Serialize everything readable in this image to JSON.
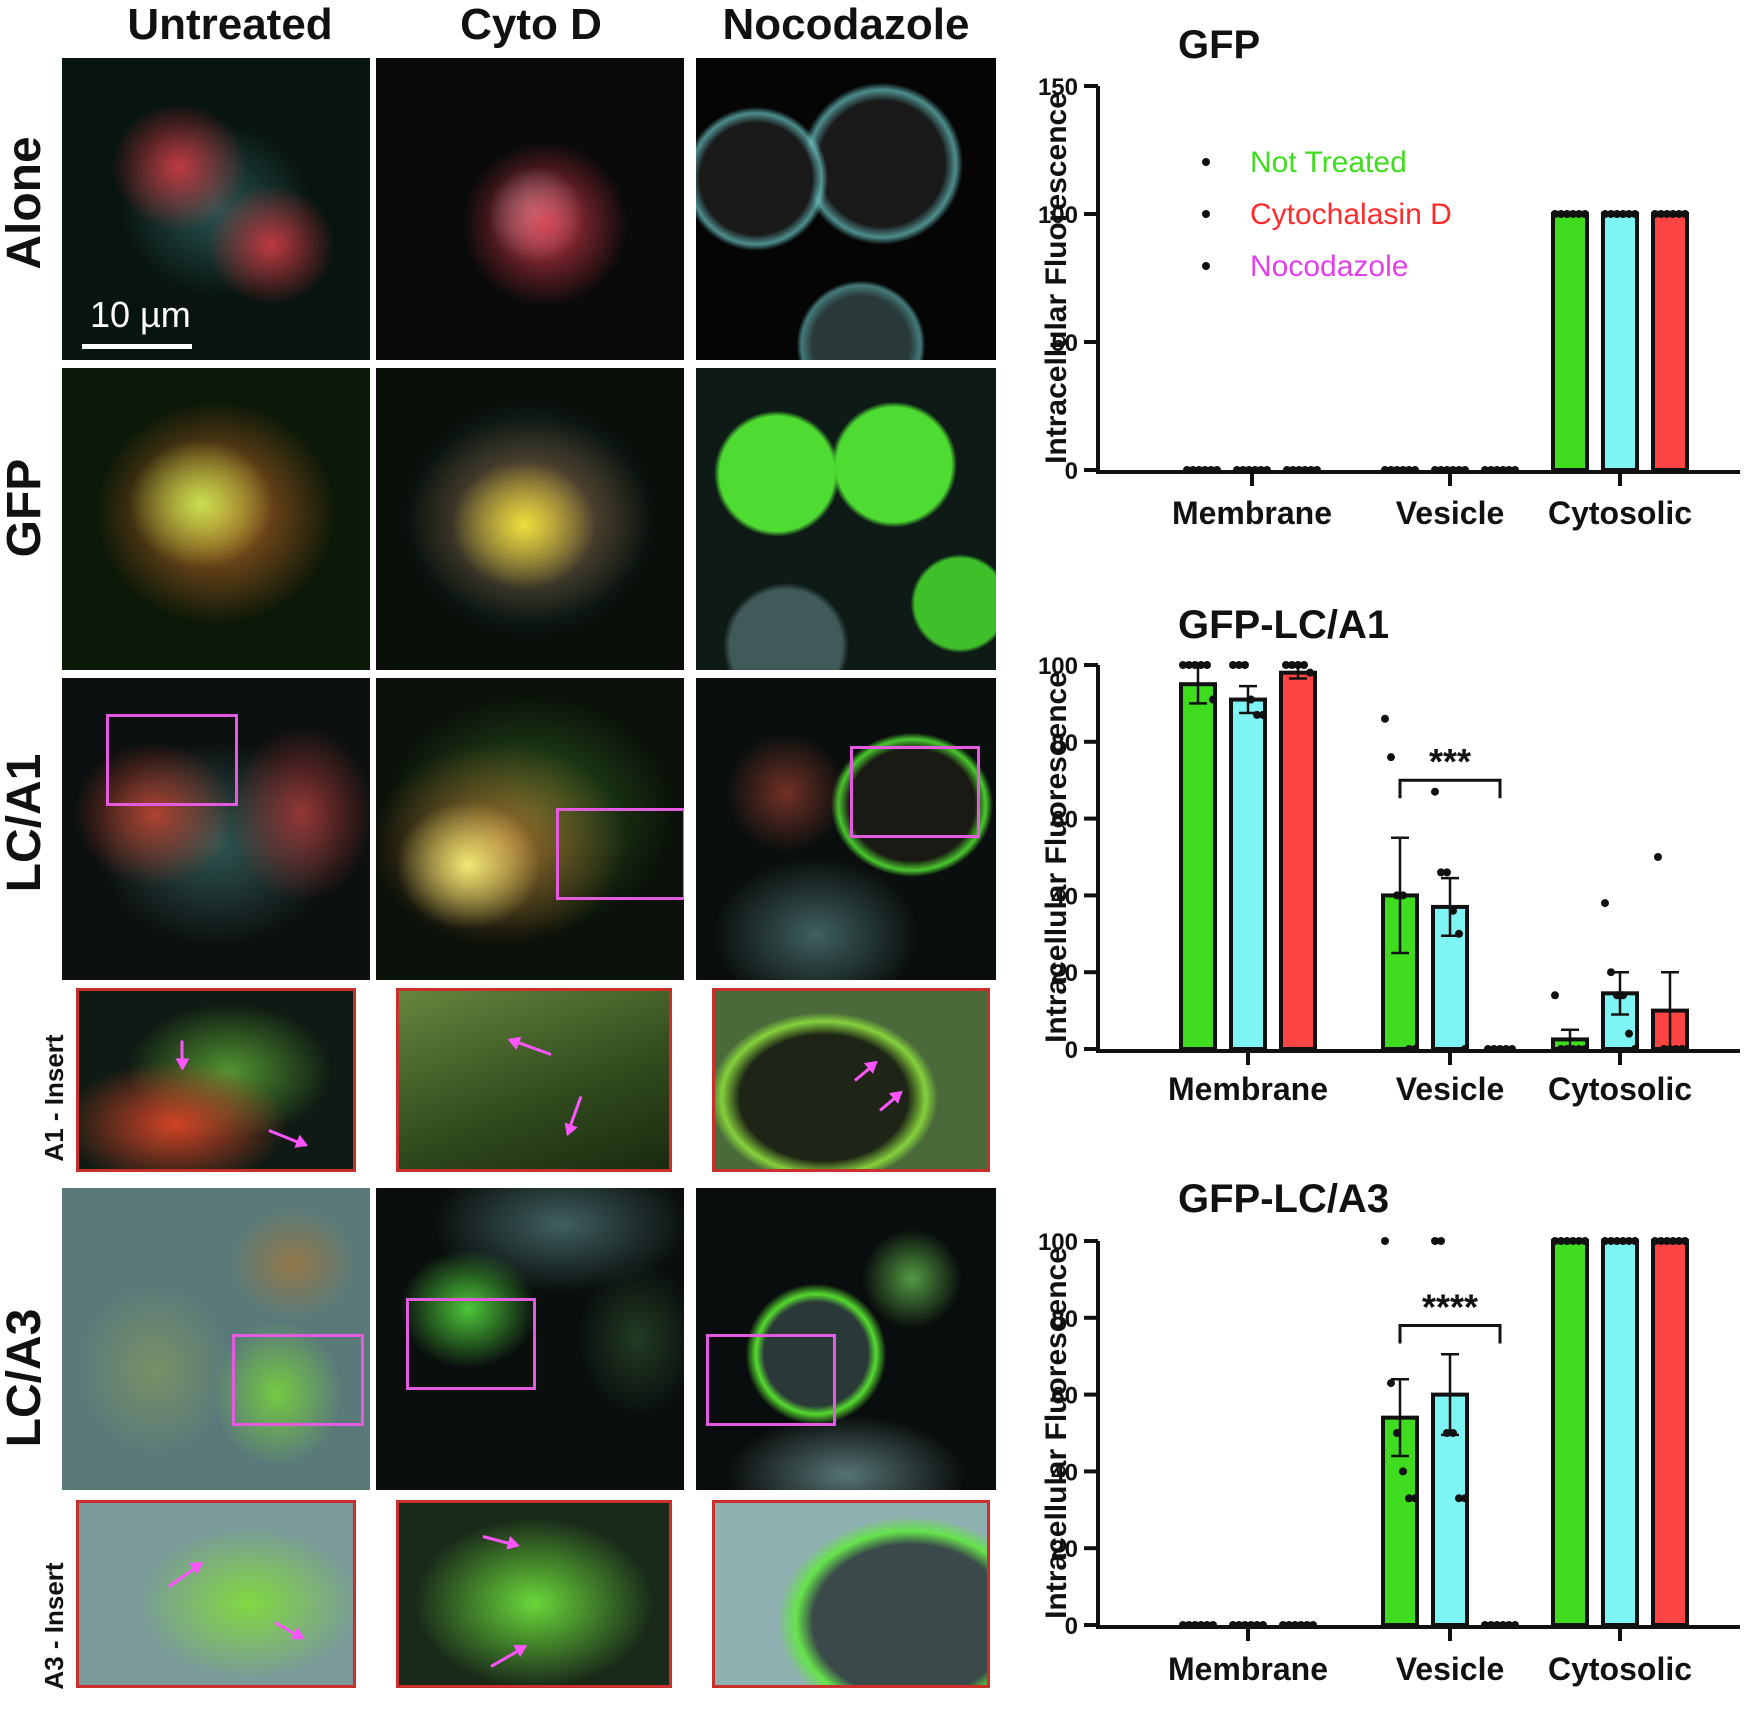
{
  "micrograph_grid": {
    "columns": [
      "Untreated",
      "Cyto D",
      "Nocodazole"
    ],
    "rows": [
      "Alone",
      "GFP",
      "LC/A1",
      "LC/A3"
    ],
    "inserts": [
      "A1 - Insert",
      "A3 - Insert"
    ],
    "scale_bar": "10 µm"
  },
  "colors": {
    "not_treated": "#3fdc1f",
    "cytochalasin": "#7ff4f4",
    "nocodazole": "#ff4444",
    "legend_not_treated": "#3fdc1f",
    "legend_cytochalasin": "#ff2a2a",
    "legend_nocodazole": "#e040e8",
    "zoom_box": "#e45be0",
    "insert_border": "#c9302c"
  },
  "chart_data": [
    {
      "type": "bar",
      "title": "GFP",
      "ylabel": "Intracellular Fluorescence",
      "categories": [
        "Membrane",
        "Vesicle",
        "Cytosolic"
      ],
      "ylim": [
        0,
        150
      ],
      "yticks": [
        0,
        50,
        100,
        150
      ],
      "legend": {
        "placement": "top-left",
        "entries": [
          "Not Treated",
          "Cytochalasin D",
          "Nocodazole"
        ]
      },
      "series": [
        {
          "values": [
            0,
            0,
            100
          ],
          "error": [
            0,
            0,
            0
          ],
          "points": [
            [
              0,
              0,
              0,
              0,
              0,
              0
            ],
            [
              0,
              0,
              0,
              0,
              0,
              0
            ],
            [
              100,
              100,
              100,
              100,
              100,
              100
            ]
          ]
        },
        {
          "values": [
            0,
            0,
            100
          ],
          "error": [
            0,
            0,
            0
          ],
          "points": [
            [
              0,
              0,
              0,
              0,
              0,
              0
            ],
            [
              0,
              0,
              0,
              0,
              0,
              0
            ],
            [
              100,
              100,
              100,
              100,
              100,
              100
            ]
          ]
        },
        {
          "values": [
            0,
            0,
            100
          ],
          "error": [
            0,
            0,
            0
          ],
          "points": [
            [
              0,
              0,
              0,
              0,
              0,
              0
            ],
            [
              0,
              0,
              0,
              0,
              0,
              0
            ],
            [
              100,
              100,
              100,
              100,
              100,
              100
            ]
          ]
        }
      ],
      "significance": []
    },
    {
      "type": "bar",
      "title": "GFP-LC/A1",
      "ylabel": "Intracellular Fluorescence",
      "categories": [
        "Membrane",
        "Vesicle",
        "Cytosolic"
      ],
      "ylim": [
        0,
        100
      ],
      "yticks": [
        0,
        20,
        40,
        60,
        80,
        100
      ],
      "series": [
        {
          "values": [
            95,
            40,
            2.5
          ],
          "error": [
            5,
            15,
            2.5
          ],
          "points": [
            [
              100,
              100,
              100,
              100,
              100,
              91
            ],
            [
              86,
              76,
              40,
              40,
              0,
              0
            ],
            [
              14,
              0,
              0,
              0,
              0,
              0
            ]
          ]
        },
        {
          "values": [
            91,
            37,
            14.5
          ],
          "error": [
            3.5,
            7.5,
            5.5
          ],
          "points": [
            [
              100,
              100,
              100,
              91,
              87,
              87
            ],
            [
              67,
              46,
              46,
              36,
              30,
              0
            ],
            [
              38,
              20,
              14,
              14,
              4,
              0
            ]
          ]
        },
        {
          "values": [
            98,
            0,
            10
          ],
          "error": [
            1.5,
            0,
            10
          ],
          "points": [
            [
              100,
              100,
              100,
              100,
              98
            ],
            [
              0,
              0,
              0,
              0,
              0
            ],
            [
              50,
              0,
              0,
              0,
              0
            ]
          ]
        }
      ],
      "significance": [
        {
          "category": "Vesicle",
          "from_series": 0,
          "to_series": 2,
          "label": "***",
          "y": 70
        }
      ]
    },
    {
      "type": "bar",
      "title": "GFP-LC/A3",
      "ylabel": "Intracellular Fluorescence",
      "categories": [
        "Membrane",
        "Vesicle",
        "Cytosolic"
      ],
      "ylim": [
        0,
        100
      ],
      "yticks": [
        0,
        20,
        40,
        60,
        80,
        100
      ],
      "series": [
        {
          "values": [
            0,
            54,
            100
          ],
          "error": [
            0,
            10,
            0
          ],
          "points": [
            [
              0,
              0,
              0,
              0,
              0,
              0
            ],
            [
              100,
              63,
              50,
              40,
              33,
              33
            ],
            [
              100,
              100,
              100,
              100,
              100,
              100
            ]
          ]
        },
        {
          "values": [
            0,
            60,
            100
          ],
          "error": [
            0,
            10.5,
            0
          ],
          "points": [
            [
              0,
              0,
              0,
              0,
              0,
              0
            ],
            [
              100,
              100,
              50,
              50,
              33,
              33
            ],
            [
              100,
              100,
              100,
              100,
              100,
              100
            ]
          ]
        },
        {
          "values": [
            0,
            0,
            100
          ],
          "error": [
            0,
            0,
            0
          ],
          "points": [
            [
              0,
              0,
              0,
              0,
              0,
              0
            ],
            [
              0,
              0,
              0,
              0,
              0,
              0
            ],
            [
              100,
              100,
              100,
              100,
              100,
              100
            ]
          ]
        }
      ],
      "significance": [
        {
          "category": "Vesicle",
          "from_series": 0,
          "to_series": 2,
          "label": "****",
          "y": 78
        }
      ]
    }
  ]
}
